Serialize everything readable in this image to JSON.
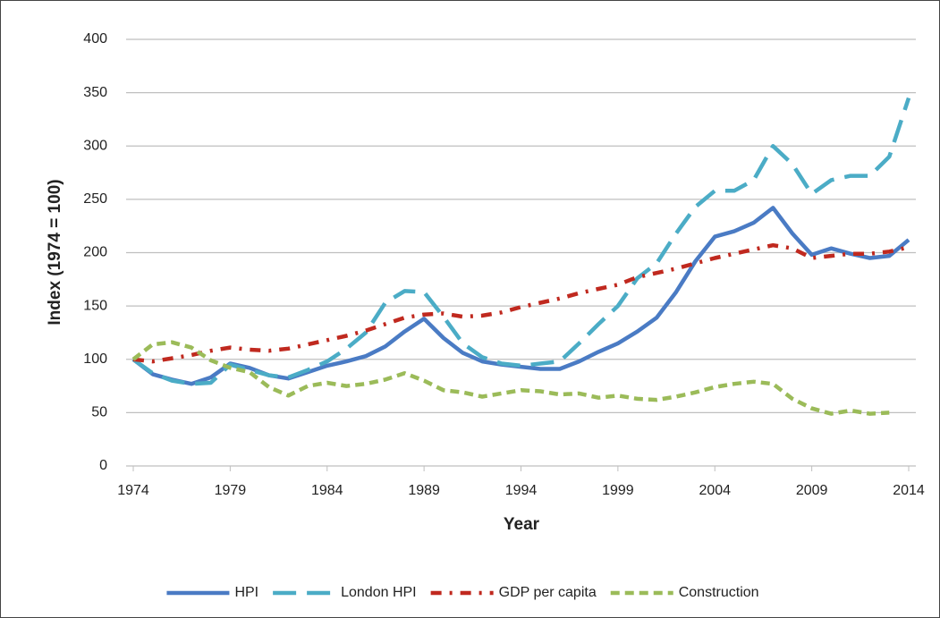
{
  "chart_data": {
    "type": "line",
    "x_label": "Year",
    "y_label": "Index (1974 = 100)",
    "x": [
      1974,
      1975,
      1976,
      1977,
      1978,
      1979,
      1980,
      1981,
      1982,
      1983,
      1984,
      1985,
      1986,
      1987,
      1988,
      1989,
      1990,
      1991,
      1992,
      1993,
      1994,
      1995,
      1996,
      1997,
      1998,
      1999,
      2000,
      2001,
      2002,
      2003,
      2004,
      2005,
      2006,
      2007,
      2008,
      2009,
      2010,
      2011,
      2012,
      2013,
      2014
    ],
    "xlim": [
      1974,
      2014
    ],
    "xticks": [
      1974,
      1979,
      1984,
      1989,
      1994,
      1999,
      2004,
      2009,
      2014
    ],
    "ylim": [
      0,
      400
    ],
    "yticks": [
      0,
      50,
      100,
      150,
      200,
      250,
      300,
      350,
      400
    ],
    "grid": true,
    "legend": "bottom",
    "series": [
      {
        "name": "HPI",
        "color": "#4a7bc4",
        "dash": "solid",
        "values": [
          100,
          86,
          81,
          77,
          83,
          96,
          92,
          85,
          82,
          88,
          94,
          98,
          103,
          112,
          126,
          138,
          120,
          106,
          98,
          95,
          93,
          91,
          91,
          98,
          107,
          115,
          126,
          139,
          163,
          192,
          215,
          220,
          228,
          242,
          218,
          198,
          204,
          199,
          195,
          197,
          212
        ]
      },
      {
        "name": "London HPI",
        "color": "#4bacc6",
        "dash": "long-dash",
        "values": [
          100,
          87,
          80,
          77,
          78,
          95,
          90,
          85,
          83,
          90,
          98,
          110,
          125,
          153,
          164,
          163,
          140,
          115,
          102,
          96,
          94,
          96,
          98,
          115,
          133,
          150,
          176,
          190,
          218,
          243,
          258,
          258,
          268,
          300,
          283,
          255,
          268,
          272,
          272,
          290,
          345
        ]
      },
      {
        "name": "GDP per capita",
        "color": "#c0291f",
        "dash": "dash-dot",
        "values": [
          100,
          98,
          101,
          104,
          108,
          111,
          109,
          108,
          110,
          114,
          118,
          122,
          127,
          133,
          139,
          142,
          143,
          140,
          141,
          144,
          149,
          153,
          157,
          162,
          166,
          170,
          177,
          181,
          185,
          190,
          195,
          199,
          203,
          207,
          204,
          195,
          197,
          199,
          199,
          201,
          205
        ]
      },
      {
        "name": "Construction",
        "color": "#9bbb59",
        "dash": "short-dash",
        "values": [
          100,
          114,
          116,
          111,
          99,
          92,
          88,
          74,
          66,
          75,
          78,
          75,
          77,
          81,
          87,
          80,
          71,
          69,
          65,
          68,
          71,
          70,
          67,
          68,
          64,
          66,
          63,
          62,
          65,
          69,
          74,
          77,
          79,
          77,
          63,
          54,
          49,
          52,
          49,
          50,
          null
        ]
      }
    ]
  }
}
